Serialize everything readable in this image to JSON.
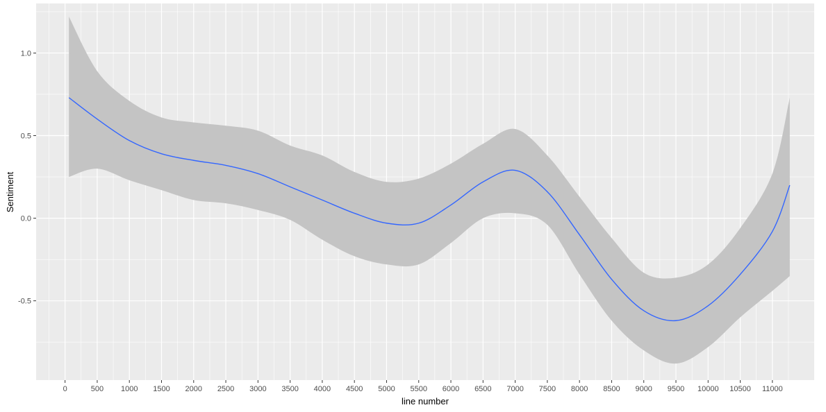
{
  "chart_data": {
    "type": "line",
    "title": "",
    "xlabel": "line number",
    "ylabel": "Sentiment",
    "xlim": [
      -450,
      11650
    ],
    "ylim": [
      -0.98,
      1.3
    ],
    "x_ticks": [
      0,
      500,
      1000,
      1500,
      2000,
      2500,
      3000,
      3500,
      4000,
      4500,
      5000,
      5500,
      6000,
      6500,
      7000,
      7500,
      8000,
      8500,
      9000,
      9500,
      10000,
      10500,
      11000
    ],
    "x_tick_labels": [
      "0",
      "500",
      "1000",
      "1500",
      "2000",
      "2500",
      "3000",
      "3500",
      "4000",
      "4500",
      "5000",
      "5500",
      "6000",
      "6500",
      "7000",
      "7500",
      "8000",
      "8500",
      "9000",
      "9500",
      "10000",
      "10500",
      "11000"
    ],
    "y_ticks": [
      -0.5,
      0.0,
      0.5,
      1.0
    ],
    "y_tick_labels": [
      "-0.5",
      "0.0",
      "0.5",
      "1.0"
    ],
    "grid": true,
    "legend": "none",
    "colors": {
      "panel": "#ebebeb",
      "grid": "#ffffff",
      "line": "#3366ff",
      "ribbon": "#c4c4c4"
    },
    "series": [
      {
        "x": [
          60,
          500,
          1000,
          1500,
          2000,
          2500,
          3000,
          3500,
          4000,
          4500,
          5000,
          5500,
          6000,
          6500,
          7000,
          7500,
          8000,
          8500,
          9000,
          9500,
          10000,
          10500,
          11000,
          11270
        ],
        "y": [
          0.73,
          0.6,
          0.47,
          0.39,
          0.35,
          0.32,
          0.27,
          0.19,
          0.11,
          0.03,
          -0.03,
          -0.03,
          0.08,
          0.22,
          0.29,
          0.16,
          -0.1,
          -0.37,
          -0.56,
          -0.62,
          -0.53,
          -0.34,
          -0.08,
          0.2
        ],
        "ymin": [
          0.25,
          0.3,
          0.23,
          0.17,
          0.11,
          0.09,
          0.05,
          -0.01,
          -0.13,
          -0.23,
          -0.28,
          -0.28,
          -0.15,
          0.0,
          0.03,
          -0.04,
          -0.34,
          -0.62,
          -0.8,
          -0.88,
          -0.78,
          -0.6,
          -0.44,
          -0.35
        ],
        "ymax": [
          1.22,
          0.89,
          0.71,
          0.61,
          0.58,
          0.56,
          0.53,
          0.44,
          0.38,
          0.28,
          0.22,
          0.24,
          0.33,
          0.45,
          0.54,
          0.38,
          0.13,
          -0.12,
          -0.33,
          -0.36,
          -0.28,
          -0.06,
          0.27,
          0.73
        ]
      }
    ]
  }
}
